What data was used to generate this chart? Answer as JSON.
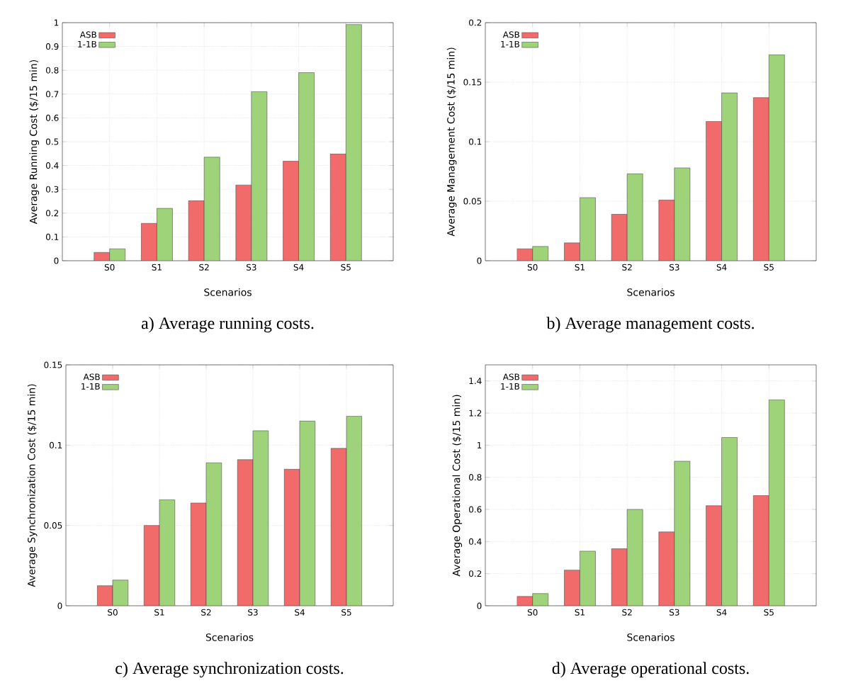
{
  "chart_data": [
    {
      "type": "bar",
      "title": "a) Average running costs.",
      "xlabel": "Scenarios",
      "ylabel": "Average Running Cost ($/15 min)",
      "categories": [
        "S0",
        "S1",
        "S2",
        "S3",
        "S4",
        "S5"
      ],
      "ylim": [
        0,
        1
      ],
      "yticks": [
        0,
        0.1,
        0.2,
        0.3,
        0.4,
        0.5,
        0.6,
        0.7,
        0.8,
        0.9,
        1
      ],
      "grid": true,
      "legend": "top left",
      "series": [
        {
          "name": "ASB",
          "color": "#f26b6b",
          "values": [
            0.035,
            0.157,
            0.252,
            0.318,
            0.418,
            0.449
          ]
        },
        {
          "name": "1-1B",
          "color": "#9fd37a",
          "values": [
            0.05,
            0.22,
            0.435,
            0.71,
            0.79,
            0.992
          ]
        }
      ]
    },
    {
      "type": "bar",
      "title": "b) Average management costs.",
      "xlabel": "Scenarios",
      "ylabel": "Average Management Cost ($/15 min)",
      "categories": [
        "S0",
        "S1",
        "S2",
        "S3",
        "S4",
        "S5"
      ],
      "ylim": [
        0,
        0.2
      ],
      "yticks": [
        0,
        0.05,
        0.1,
        0.15,
        0.2
      ],
      "grid": true,
      "legend": "top left",
      "series": [
        {
          "name": "ASB",
          "color": "#f26b6b",
          "values": [
            0.01,
            0.015,
            0.039,
            0.051,
            0.117,
            0.137
          ]
        },
        {
          "name": "1-1B",
          "color": "#9fd37a",
          "values": [
            0.012,
            0.053,
            0.073,
            0.078,
            0.141,
            0.173
          ]
        }
      ]
    },
    {
      "type": "bar",
      "title": "c) Average synchronization costs.",
      "xlabel": "Scenarios",
      "ylabel": "Average Synchronization Cost ($/15 min)",
      "categories": [
        "S0",
        "S1",
        "S2",
        "S3",
        "S4",
        "S5"
      ],
      "ylim": [
        0,
        0.15
      ],
      "yticks": [
        0,
        0.05,
        0.1,
        0.15
      ],
      "grid": true,
      "legend": "top left",
      "series": [
        {
          "name": "ASB",
          "color": "#f26b6b",
          "values": [
            0.0125,
            0.05,
            0.064,
            0.091,
            0.085,
            0.098
          ]
        },
        {
          "name": "1-1B",
          "color": "#9fd37a",
          "values": [
            0.016,
            0.066,
            0.089,
            0.109,
            0.115,
            0.118
          ]
        }
      ]
    },
    {
      "type": "bar",
      "title": "d) Average operational costs.",
      "xlabel": "Scenarios",
      "ylabel": "Average Operational Cost ($/15 min)",
      "categories": [
        "S0",
        "S1",
        "S2",
        "S3",
        "S4",
        "S5"
      ],
      "ylim": [
        0,
        1.5
      ],
      "yticks": [
        0,
        0.2,
        0.4,
        0.6,
        0.8,
        1,
        1.2,
        1.4
      ],
      "grid": true,
      "legend": "top left",
      "series": [
        {
          "name": "ASB",
          "color": "#f26b6b",
          "values": [
            0.058,
            0.222,
            0.355,
            0.46,
            0.623,
            0.686
          ]
        },
        {
          "name": "1-1B",
          "color": "#9fd37a",
          "values": [
            0.076,
            0.34,
            0.6,
            0.9,
            1.048,
            1.283
          ]
        }
      ]
    }
  ]
}
